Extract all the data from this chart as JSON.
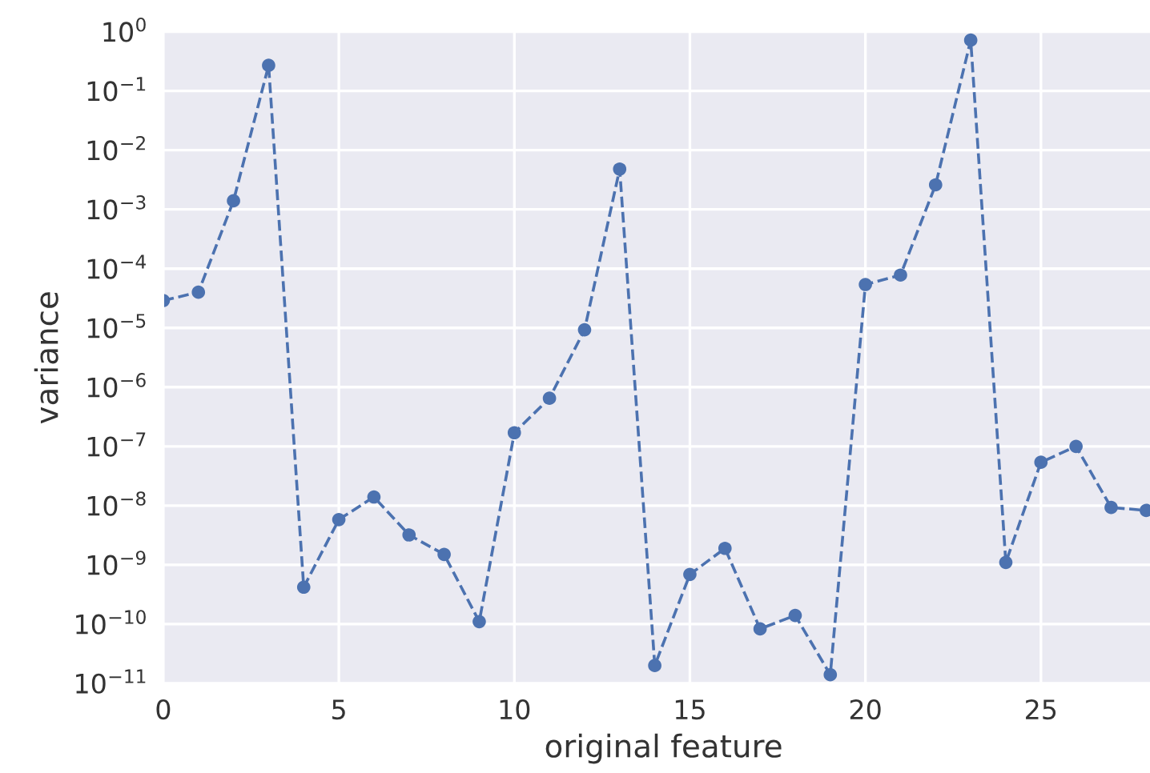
{
  "chart_data": {
    "type": "line",
    "xlabel": "original feature",
    "ylabel": "variance",
    "x": [
      0,
      1,
      2,
      3,
      4,
      5,
      6,
      7,
      8,
      9,
      10,
      11,
      12,
      13,
      14,
      15,
      16,
      17,
      18,
      19,
      20,
      21,
      22,
      23,
      24,
      25,
      26,
      27,
      28
    ],
    "series": [
      {
        "color": "#4c72b0",
        "values": [
          2.9e-05,
          4e-05,
          0.0014,
          0.27,
          4.2e-10,
          5.8e-09,
          1.4e-08,
          3.2e-09,
          1.5e-09,
          1.1e-10,
          1.7e-07,
          6.5e-07,
          9.3e-06,
          0.0048,
          2e-11,
          6.9e-10,
          1.9e-09,
          8.3e-11,
          1.4e-10,
          1.4e-11,
          5.4e-05,
          7.8e-05,
          0.0026,
          0.72,
          1.1e-09,
          5.4e-08,
          1e-07,
          9.3e-09,
          8.3e-09
        ]
      }
    ],
    "log": "y",
    "xlim": [
      0,
      28.5
    ],
    "ylim": [
      1e-11,
      1
    ],
    "xticks": [
      0,
      5,
      10,
      15,
      20,
      25
    ],
    "yticks": [
      {
        "value": 1,
        "label": "10$^{0}$"
      },
      {
        "value": 0.1,
        "label": "10$^{−1}$"
      },
      {
        "value": 0.01,
        "label": "10$^{−2}$"
      },
      {
        "value": 0.001,
        "label": "10$^{−3}$"
      },
      {
        "value": 0.0001,
        "label": "10$^{−4}$"
      },
      {
        "value": 1e-05,
        "label": "10$^{−5}$"
      },
      {
        "value": 1e-06,
        "label": "10$^{−6}$"
      },
      {
        "value": 1e-07,
        "label": "10$^{−7}$"
      },
      {
        "value": 1e-08,
        "label": "10$^{−8}$"
      },
      {
        "value": 1e-09,
        "label": "10$^{−9}$"
      },
      {
        "value": 1e-10,
        "label": "10$^{−10}$"
      },
      {
        "value": 1e-11,
        "label": "10$^{−11}$"
      }
    ],
    "grid": true,
    "marker": "circle",
    "line_style": "dashed",
    "legend": false
  }
}
